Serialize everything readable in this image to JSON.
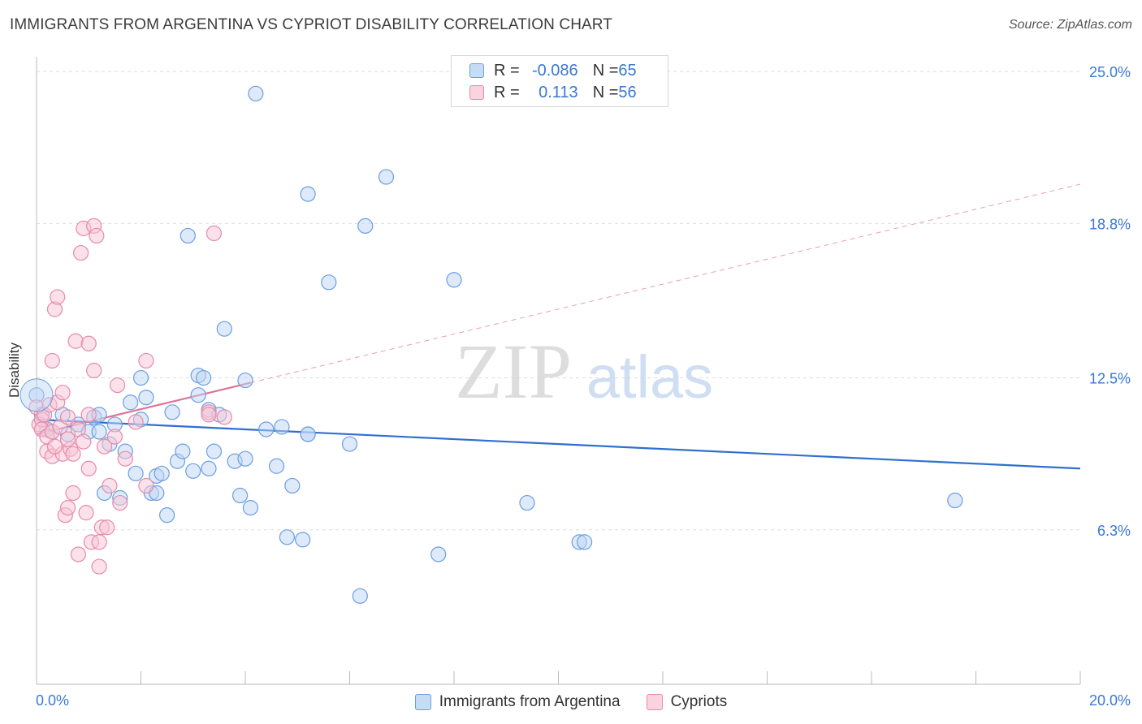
{
  "header": {
    "title": "IMMIGRANTS FROM ARGENTINA VS CYPRIOT DISABILITY CORRELATION CHART",
    "source": "Source: ZipAtlas.com"
  },
  "watermark": {
    "zip": "ZIP",
    "atlas": "atlas"
  },
  "legend": {
    "rows": [
      {
        "r_label": "R = ",
        "r_value": "-0.086",
        "n_label": "N = ",
        "n_value": "65",
        "color": "#a9c8f0",
        "border": "#6a9fe0"
      },
      {
        "r_label": "R = ",
        "r_value": "0.113",
        "n_label": "N = ",
        "n_value": "56",
        "color": "#f7b8cc",
        "border": "#e88aa8"
      }
    ]
  },
  "bottom_legend": [
    {
      "label": "Immigrants from Argentina",
      "color": "#c6dcf5",
      "border": "#6a9fe0"
    },
    {
      "label": "Cypriots",
      "color": "#fbd3df",
      "border": "#e88aa8"
    }
  ],
  "chart_data": {
    "type": "scatter",
    "ylabel": "Disability",
    "x_tick_labels": [
      "0.0%",
      "20.0%"
    ],
    "y_tick_labels": [
      "6.3%",
      "12.5%",
      "18.8%",
      "25.0%"
    ],
    "xlim": [
      0,
      20
    ],
    "ylim": [
      0,
      25.6
    ],
    "y_ticks": [
      6.3,
      12.5,
      18.8,
      25.0
    ],
    "grid": "horizontal dashed",
    "series": [
      {
        "name": "Immigrants from Argentina",
        "color": "#6a9fe0",
        "fill": "#bdd5f3",
        "trend": {
          "x": [
            0,
            20
          ],
          "y": [
            10.8,
            8.8
          ],
          "style": "solid",
          "color": "#2f6fd0"
        },
        "points": [
          [
            0.0,
            11.8
          ],
          [
            0.1,
            11.0
          ],
          [
            0.2,
            10.4
          ],
          [
            0.3,
            10.3
          ],
          [
            0.5,
            11.0
          ],
          [
            0.6,
            10.2
          ],
          [
            0.8,
            10.6
          ],
          [
            1.0,
            10.3
          ],
          [
            1.1,
            10.9
          ],
          [
            1.2,
            11.0
          ],
          [
            1.3,
            7.8
          ],
          [
            1.5,
            10.6
          ],
          [
            1.6,
            7.6
          ],
          [
            1.7,
            9.5
          ],
          [
            1.4,
            9.8
          ],
          [
            1.8,
            11.5
          ],
          [
            1.9,
            8.6
          ],
          [
            2.0,
            10.8
          ],
          [
            2.0,
            12.5
          ],
          [
            2.1,
            11.7
          ],
          [
            2.2,
            7.8
          ],
          [
            2.3,
            8.5
          ],
          [
            2.4,
            8.6
          ],
          [
            2.5,
            6.9
          ],
          [
            2.6,
            11.1
          ],
          [
            2.7,
            9.1
          ],
          [
            2.8,
            9.5
          ],
          [
            2.9,
            18.3
          ],
          [
            3.0,
            8.7
          ],
          [
            3.1,
            11.8
          ],
          [
            3.1,
            12.6
          ],
          [
            3.2,
            12.5
          ],
          [
            3.3,
            11.2
          ],
          [
            3.3,
            8.8
          ],
          [
            3.4,
            9.5
          ],
          [
            3.5,
            11.0
          ],
          [
            3.6,
            14.5
          ],
          [
            3.8,
            9.1
          ],
          [
            3.9,
            7.7
          ],
          [
            4.0,
            12.4
          ],
          [
            4.0,
            9.2
          ],
          [
            4.1,
            7.2
          ],
          [
            4.2,
            24.1
          ],
          [
            4.4,
            10.4
          ],
          [
            4.6,
            8.9
          ],
          [
            4.7,
            10.5
          ],
          [
            4.8,
            6.0
          ],
          [
            4.9,
            8.1
          ],
          [
            5.1,
            5.9
          ],
          [
            5.2,
            10.2
          ],
          [
            5.2,
            20.0
          ],
          [
            5.6,
            16.4
          ],
          [
            5.2,
            10.2
          ],
          [
            6.0,
            9.8
          ],
          [
            6.2,
            3.6
          ],
          [
            6.3,
            18.7
          ],
          [
            6.7,
            20.7
          ],
          [
            7.7,
            5.3
          ],
          [
            8.0,
            16.5
          ],
          [
            9.4,
            7.4
          ],
          [
            10.4,
            5.8
          ],
          [
            10.5,
            5.8
          ],
          [
            17.6,
            7.5
          ],
          [
            1.2,
            10.3
          ],
          [
            2.3,
            7.8
          ]
        ]
      },
      {
        "name": "Cypriots",
        "color": "#e88aa8",
        "fill": "#f8c5d5",
        "trend": {
          "x": [
            0,
            4.1
          ],
          "y": [
            10.2,
            12.3
          ],
          "style": "solid",
          "color": "#e0729a",
          "extension": {
            "x": [
              4.1,
              20
            ],
            "y": [
              12.3,
              20.4
            ],
            "style": "dashed"
          }
        },
        "points": [
          [
            0.0,
            11.3
          ],
          [
            0.05,
            10.6
          ],
          [
            0.1,
            10.8
          ],
          [
            0.1,
            10.4
          ],
          [
            0.15,
            11.0
          ],
          [
            0.2,
            10.1
          ],
          [
            0.2,
            9.5
          ],
          [
            0.25,
            11.4
          ],
          [
            0.3,
            10.3
          ],
          [
            0.3,
            9.3
          ],
          [
            0.3,
            13.2
          ],
          [
            0.35,
            15.3
          ],
          [
            0.4,
            11.5
          ],
          [
            0.4,
            15.8
          ],
          [
            0.45,
            10.5
          ],
          [
            0.5,
            9.4
          ],
          [
            0.5,
            11.9
          ],
          [
            0.55,
            6.9
          ],
          [
            0.6,
            7.2
          ],
          [
            0.6,
            10.9
          ],
          [
            0.65,
            9.6
          ],
          [
            0.7,
            7.8
          ],
          [
            0.7,
            9.4
          ],
          [
            0.75,
            14.0
          ],
          [
            0.8,
            5.3
          ],
          [
            0.8,
            10.4
          ],
          [
            0.85,
            17.6
          ],
          [
            0.9,
            9.9
          ],
          [
            0.9,
            18.6
          ],
          [
            0.95,
            7.0
          ],
          [
            1.0,
            13.9
          ],
          [
            1.0,
            8.8
          ],
          [
            1.0,
            11.0
          ],
          [
            1.05,
            5.8
          ],
          [
            1.1,
            12.8
          ],
          [
            1.1,
            18.7
          ],
          [
            1.15,
            18.3
          ],
          [
            1.2,
            5.8
          ],
          [
            1.2,
            4.8
          ],
          [
            1.25,
            6.4
          ],
          [
            1.3,
            9.7
          ],
          [
            1.35,
            6.4
          ],
          [
            1.4,
            8.1
          ],
          [
            1.5,
            10.1
          ],
          [
            1.55,
            12.2
          ],
          [
            1.6,
            7.4
          ],
          [
            1.7,
            9.2
          ],
          [
            1.9,
            10.7
          ],
          [
            2.1,
            13.2
          ],
          [
            2.1,
            8.1
          ],
          [
            3.3,
            11.1
          ],
          [
            3.4,
            18.4
          ],
          [
            3.6,
            10.9
          ],
          [
            3.3,
            11.0
          ],
          [
            0.6,
            10.0
          ],
          [
            0.35,
            9.7
          ]
        ]
      }
    ]
  }
}
